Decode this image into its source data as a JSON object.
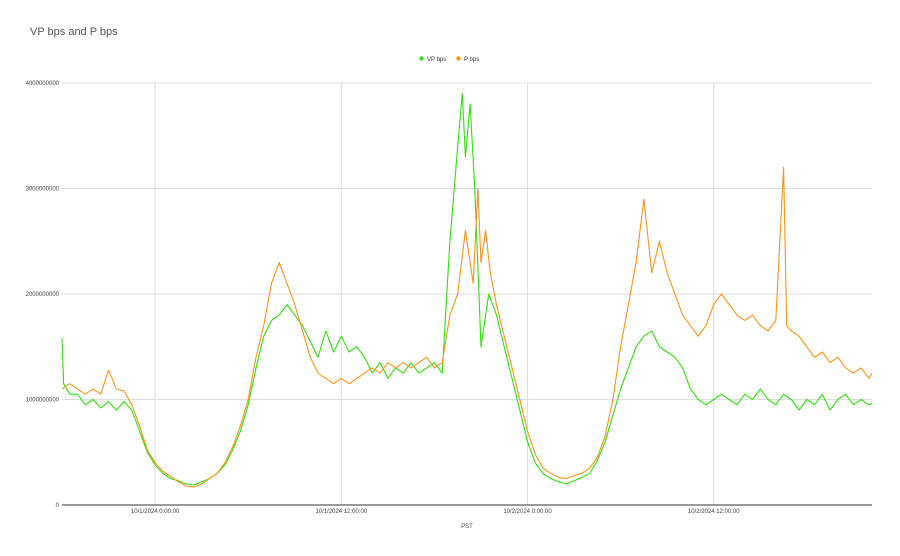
{
  "chart_data": {
    "type": "line",
    "title": "VP bps and P bps",
    "xlabel": "PST",
    "ylabel": "",
    "x_ticks": [
      {
        "label": "10/1/2024 0:00:00",
        "t": 6
      },
      {
        "label": "10/1/2024 12:00:00",
        "t": 18
      },
      {
        "label": "10/2/2024 0:00:00",
        "t": 30
      },
      {
        "label": "10/2/2024 12:00:00",
        "t": 42
      }
    ],
    "y_ticks": [
      0,
      1000000000,
      2000000000,
      3000000000,
      4000000000
    ],
    "y_tick_labels": [
      "0",
      "1000000000",
      "2000000000",
      "3000000000",
      "4000000000"
    ],
    "ylim": [
      0,
      4000000000
    ],
    "xlim": [
      0,
      52.2
    ],
    "grid": true,
    "legend": "top-center",
    "series": [
      {
        "name": "VP bps",
        "color": "#33dd11",
        "points": [
          [
            0,
            1580000000
          ],
          [
            0.1,
            1150000000
          ],
          [
            0.5,
            1050000000
          ],
          [
            1,
            1050000000
          ],
          [
            1.5,
            950000000
          ],
          [
            2,
            1000000000
          ],
          [
            2.5,
            920000000
          ],
          [
            3,
            980000000
          ],
          [
            3.5,
            900000000
          ],
          [
            4,
            980000000
          ],
          [
            4.5,
            900000000
          ],
          [
            5,
            700000000
          ],
          [
            5.5,
            500000000
          ],
          [
            6,
            380000000
          ],
          [
            6.5,
            300000000
          ],
          [
            7,
            250000000
          ],
          [
            7.5,
            230000000
          ],
          [
            8,
            200000000
          ],
          [
            8.5,
            190000000
          ],
          [
            9,
            220000000
          ],
          [
            9.5,
            250000000
          ],
          [
            10,
            300000000
          ],
          [
            10.5,
            380000000
          ],
          [
            11,
            520000000
          ],
          [
            11.5,
            700000000
          ],
          [
            12,
            950000000
          ],
          [
            12.5,
            1300000000
          ],
          [
            13,
            1600000000
          ],
          [
            13.5,
            1750000000
          ],
          [
            14,
            1800000000
          ],
          [
            14.5,
            1900000000
          ],
          [
            15,
            1800000000
          ],
          [
            15.5,
            1700000000
          ],
          [
            16,
            1550000000
          ],
          [
            16.5,
            1400000000
          ],
          [
            17,
            1650000000
          ],
          [
            17.5,
            1450000000
          ],
          [
            18,
            1600000000
          ],
          [
            18.5,
            1450000000
          ],
          [
            19,
            1500000000
          ],
          [
            19.5,
            1400000000
          ],
          [
            20,
            1250000000
          ],
          [
            20.5,
            1350000000
          ],
          [
            21,
            1200000000
          ],
          [
            21.5,
            1300000000
          ],
          [
            22,
            1250000000
          ],
          [
            22.5,
            1350000000
          ],
          [
            23,
            1250000000
          ],
          [
            23.5,
            1300000000
          ],
          [
            24,
            1350000000
          ],
          [
            24.5,
            1250000000
          ],
          [
            25,
            2500000000
          ],
          [
            25.5,
            3400000000
          ],
          [
            25.8,
            3900000000
          ],
          [
            26,
            3300000000
          ],
          [
            26.3,
            3800000000
          ],
          [
            26.6,
            3000000000
          ],
          [
            27,
            1500000000
          ],
          [
            27.5,
            2000000000
          ],
          [
            28,
            1800000000
          ],
          [
            28.5,
            1500000000
          ],
          [
            29,
            1200000000
          ],
          [
            29.5,
            900000000
          ],
          [
            30,
            600000000
          ],
          [
            30.5,
            400000000
          ],
          [
            31,
            300000000
          ],
          [
            31.5,
            250000000
          ],
          [
            32,
            220000000
          ],
          [
            32.5,
            200000000
          ],
          [
            33,
            230000000
          ],
          [
            33.5,
            260000000
          ],
          [
            34,
            300000000
          ],
          [
            34.5,
            420000000
          ],
          [
            35,
            600000000
          ],
          [
            35.5,
            850000000
          ],
          [
            36,
            1100000000
          ],
          [
            36.5,
            1300000000
          ],
          [
            37,
            1500000000
          ],
          [
            37.5,
            1600000000
          ],
          [
            38,
            1650000000
          ],
          [
            38.5,
            1500000000
          ],
          [
            39,
            1450000000
          ],
          [
            39.5,
            1400000000
          ],
          [
            40,
            1300000000
          ],
          [
            40.5,
            1100000000
          ],
          [
            41,
            1000000000
          ],
          [
            41.5,
            950000000
          ],
          [
            42,
            1000000000
          ],
          [
            42.5,
            1050000000
          ],
          [
            43,
            1000000000
          ],
          [
            43.5,
            950000000
          ],
          [
            44,
            1050000000
          ],
          [
            44.5,
            1000000000
          ],
          [
            45,
            1100000000
          ],
          [
            45.5,
            1000000000
          ],
          [
            46,
            950000000
          ],
          [
            46.5,
            1050000000
          ],
          [
            47,
            1000000000
          ],
          [
            47.5,
            900000000
          ],
          [
            48,
            1000000000
          ],
          [
            48.5,
            950000000
          ],
          [
            49,
            1050000000
          ],
          [
            49.5,
            900000000
          ],
          [
            50,
            1000000000
          ],
          [
            50.5,
            1050000000
          ],
          [
            51,
            950000000
          ],
          [
            51.5,
            1000000000
          ],
          [
            52,
            950000000
          ],
          [
            52.2,
            960000000
          ]
        ]
      },
      {
        "name": "P bps",
        "color": "#f7941d",
        "points": [
          [
            0,
            1100000000
          ],
          [
            0.5,
            1150000000
          ],
          [
            1,
            1100000000
          ],
          [
            1.5,
            1050000000
          ],
          [
            2,
            1100000000
          ],
          [
            2.5,
            1050000000
          ],
          [
            3,
            1280000000
          ],
          [
            3.5,
            1100000000
          ],
          [
            4,
            1080000000
          ],
          [
            4.5,
            950000000
          ],
          [
            5,
            750000000
          ],
          [
            5.5,
            520000000
          ],
          [
            6,
            400000000
          ],
          [
            6.5,
            320000000
          ],
          [
            7,
            270000000
          ],
          [
            7.5,
            220000000
          ],
          [
            8,
            180000000
          ],
          [
            8.5,
            170000000
          ],
          [
            9,
            200000000
          ],
          [
            9.5,
            250000000
          ],
          [
            10,
            300000000
          ],
          [
            10.5,
            400000000
          ],
          [
            11,
            550000000
          ],
          [
            11.5,
            750000000
          ],
          [
            12,
            1000000000
          ],
          [
            12.5,
            1400000000
          ],
          [
            13,
            1700000000
          ],
          [
            13.5,
            2100000000
          ],
          [
            14,
            2300000000
          ],
          [
            14.5,
            2100000000
          ],
          [
            15,
            1900000000
          ],
          [
            15.5,
            1650000000
          ],
          [
            16,
            1400000000
          ],
          [
            16.5,
            1250000000
          ],
          [
            17,
            1200000000
          ],
          [
            17.5,
            1150000000
          ],
          [
            18,
            1200000000
          ],
          [
            18.5,
            1150000000
          ],
          [
            19,
            1200000000
          ],
          [
            19.5,
            1250000000
          ],
          [
            20,
            1300000000
          ],
          [
            20.5,
            1250000000
          ],
          [
            21,
            1350000000
          ],
          [
            21.5,
            1300000000
          ],
          [
            22,
            1350000000
          ],
          [
            22.5,
            1300000000
          ],
          [
            23,
            1350000000
          ],
          [
            23.5,
            1400000000
          ],
          [
            24,
            1300000000
          ],
          [
            24.5,
            1350000000
          ],
          [
            25,
            1800000000
          ],
          [
            25.5,
            2000000000
          ],
          [
            26,
            2600000000
          ],
          [
            26.5,
            2100000000
          ],
          [
            26.8,
            3000000000
          ],
          [
            27,
            2300000000
          ],
          [
            27.3,
            2600000000
          ],
          [
            27.6,
            2200000000
          ],
          [
            28,
            1900000000
          ],
          [
            28.5,
            1600000000
          ],
          [
            29,
            1300000000
          ],
          [
            29.5,
            1000000000
          ],
          [
            30,
            700000000
          ],
          [
            30.5,
            480000000
          ],
          [
            31,
            350000000
          ],
          [
            31.5,
            300000000
          ],
          [
            32,
            260000000
          ],
          [
            32.5,
            250000000
          ],
          [
            33,
            280000000
          ],
          [
            33.5,
            300000000
          ],
          [
            34,
            350000000
          ],
          [
            34.5,
            450000000
          ],
          [
            35,
            650000000
          ],
          [
            35.5,
            1000000000
          ],
          [
            36,
            1500000000
          ],
          [
            36.5,
            1900000000
          ],
          [
            37,
            2300000000
          ],
          [
            37.5,
            2900000000
          ],
          [
            38,
            2200000000
          ],
          [
            38.5,
            2500000000
          ],
          [
            39,
            2200000000
          ],
          [
            39.5,
            2000000000
          ],
          [
            40,
            1800000000
          ],
          [
            40.5,
            1700000000
          ],
          [
            41,
            1600000000
          ],
          [
            41.5,
            1700000000
          ],
          [
            42,
            1900000000
          ],
          [
            42.5,
            2000000000
          ],
          [
            43,
            1900000000
          ],
          [
            43.5,
            1800000000
          ],
          [
            44,
            1750000000
          ],
          [
            44.5,
            1800000000
          ],
          [
            45,
            1700000000
          ],
          [
            45.5,
            1650000000
          ],
          [
            46,
            1750000000
          ],
          [
            46.5,
            3200000000
          ],
          [
            46.7,
            1700000000
          ],
          [
            47,
            1650000000
          ],
          [
            47.5,
            1600000000
          ],
          [
            48,
            1500000000
          ],
          [
            48.5,
            1400000000
          ],
          [
            49,
            1450000000
          ],
          [
            49.5,
            1350000000
          ],
          [
            50,
            1400000000
          ],
          [
            50.5,
            1300000000
          ],
          [
            51,
            1250000000
          ],
          [
            51.5,
            1300000000
          ],
          [
            52,
            1200000000
          ],
          [
            52.2,
            1250000000
          ]
        ]
      }
    ]
  }
}
